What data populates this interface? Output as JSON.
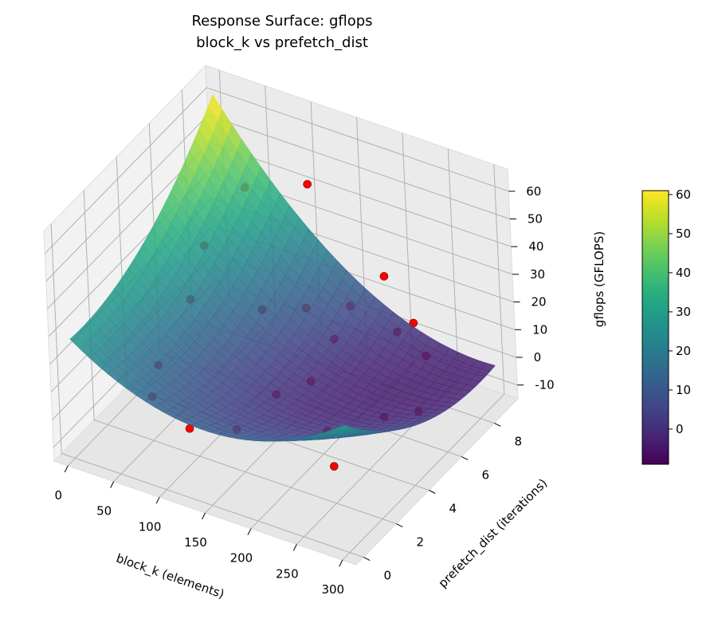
{
  "chart_data": {
    "type": "surface3d",
    "title": "Response Surface: gflops",
    "subtitle": "block_k vs prefetch_dist",
    "xlabel": "block_k (elements)",
    "ylabel": "prefetch_dist (iterations)",
    "zlabel": "gflops (GFLOPS)",
    "xlim": [
      -15,
      315
    ],
    "ylim": [
      -0.45,
      9.45
    ],
    "zlim": [
      -15,
      68
    ],
    "xticks": [
      0,
      50,
      100,
      150,
      200,
      250,
      300
    ],
    "yticks": [
      0,
      2,
      4,
      6,
      8
    ],
    "zticks": [
      -10,
      0,
      10,
      20,
      30,
      40,
      50,
      60
    ],
    "surface_model": "gflops ≈ 28 + 0.0008*x^2 - 0.23*x - 0.72*y + 0.5*y^2 - 0.0248*x*y",
    "surface_colormap": "viridis",
    "colorbar": {
      "range": [
        -9,
        61
      ],
      "ticks": [
        0,
        10,
        20,
        30,
        40,
        50,
        60
      ]
    },
    "points_color": "#ff0000",
    "points": [
      {
        "x": 137,
        "y": 2.3,
        "z": -3
      },
      {
        "x": 60,
        "y": 1.5,
        "z": 5
      },
      {
        "x": 203,
        "y": 4.1,
        "z": -7
      },
      {
        "x": 236,
        "y": 7.7,
        "z": 14
      },
      {
        "x": 225,
        "y": 7.3,
        "z": 12
      },
      {
        "x": 254,
        "y": 7.4,
        "z": 6
      },
      {
        "x": 40,
        "y": 6,
        "z": 30
      },
      {
        "x": 50,
        "y": 8,
        "z": 40
      },
      {
        "x": 110,
        "y": 8.5,
        "z": 45
      },
      {
        "x": 60,
        "y": 4,
        "z": 25
      },
      {
        "x": 120,
        "y": 5,
        "z": 22
      },
      {
        "x": 150,
        "y": 6,
        "z": 20
      },
      {
        "x": 180,
        "y": 7,
        "z": 18
      },
      {
        "x": 200,
        "y": 8,
        "z": 25
      },
      {
        "x": 170,
        "y": 6.5,
        "z": 8
      },
      {
        "x": 160,
        "y": 3.5,
        "z": 5
      },
      {
        "x": 180,
        "y": 4.5,
        "z": 6
      },
      {
        "x": 40,
        "y": 3,
        "z": 5
      },
      {
        "x": 100,
        "y": 1.5,
        "z": -2
      },
      {
        "x": 250,
        "y": 5,
        "z": -2
      },
      {
        "x": 260,
        "y": 6.5,
        "z": -8
      },
      {
        "x": 230,
        "y": 3,
        "z": -10
      }
    ]
  }
}
